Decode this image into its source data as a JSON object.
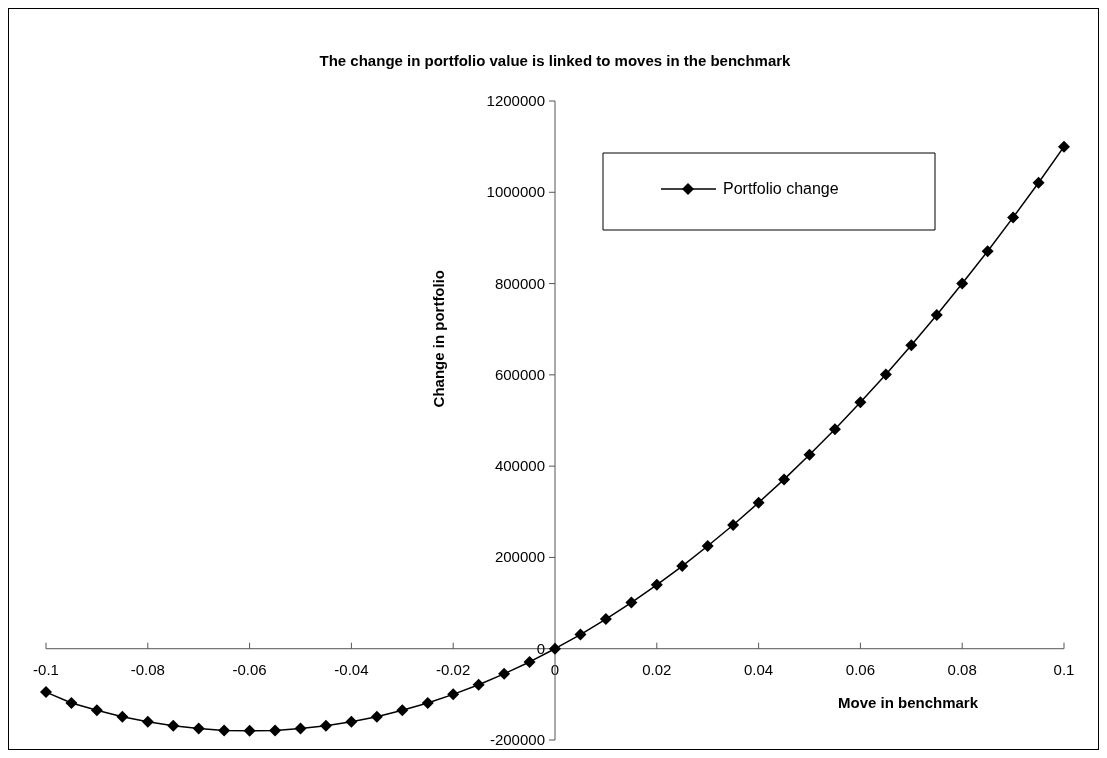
{
  "chart_data": {
    "type": "line",
    "title": "The change in portfolio value is linked to moves in the benchmark",
    "xlabel": "Move in benchmark",
    "ylabel": "Change in portfolio",
    "x": [
      -0.1,
      -0.095,
      -0.09,
      -0.085,
      -0.08,
      -0.075,
      -0.07,
      -0.065,
      -0.06,
      -0.055,
      -0.05,
      -0.045,
      -0.04,
      -0.035,
      -0.03,
      -0.025,
      -0.02,
      -0.015,
      -0.01,
      -0.005,
      0,
      0.005,
      0.01,
      0.015,
      0.02,
      0.025,
      0.03,
      0.035,
      0.04,
      0.045,
      0.05,
      0.055,
      0.06,
      0.065,
      0.07,
      0.075,
      0.08,
      0.085,
      0.09,
      0.095,
      0.1
    ],
    "series": [
      {
        "name": "Portfolio change",
        "color": "#000000",
        "values": [
          -95000,
          -119000,
          -135000,
          -149000,
          -160000,
          -169000,
          -175000,
          -179000,
          -180000,
          -179000,
          -175000,
          -169000,
          -160000,
          -149000,
          -135000,
          -119000,
          -100000,
          -79000,
          -55000,
          -29000,
          0,
          31000,
          65000,
          101000,
          140000,
          181000,
          225000,
          271000,
          320000,
          371000,
          425000,
          481000,
          540000,
          601000,
          665000,
          731000,
          800000,
          871000,
          945000,
          1021000,
          1100000
        ]
      }
    ],
    "xlim": [
      -0.1,
      0.1
    ],
    "xticks": [
      -0.1,
      -0.08,
      -0.06,
      -0.04,
      -0.02,
      0,
      0.02,
      0.04,
      0.06,
      0.08,
      0.1
    ],
    "ylim": [
      -200000,
      1200000
    ],
    "yticks": [
      -200000,
      0,
      200000,
      400000,
      600000,
      800000,
      1000000,
      1200000
    ],
    "marker": "diamond",
    "legend": "top right",
    "grid": false
  }
}
